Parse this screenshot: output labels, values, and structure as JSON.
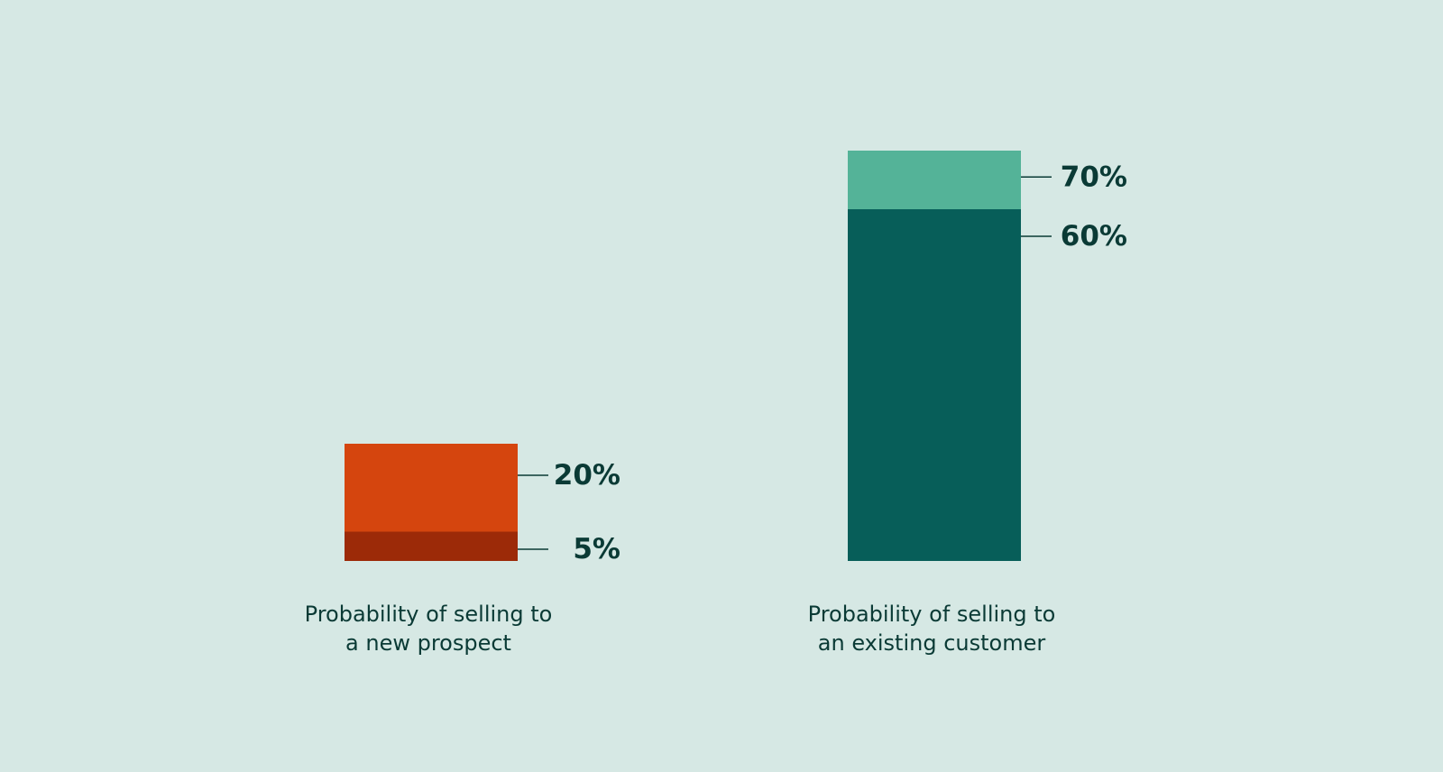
{
  "colors": {
    "background": "#d6e8e4",
    "text": "#0a3a35",
    "prospect_high": "#d5450e",
    "prospect_low": "#9c2a08",
    "customer_high": "#54b398",
    "customer_low": "#075e59"
  },
  "chart_data": {
    "type": "bar",
    "layout": "overlapping-range",
    "title": "",
    "xlabel": "",
    "ylabel": "",
    "ylim": [
      0,
      70
    ],
    "grid": false,
    "legend": "none",
    "bars": [
      {
        "category_lines": [
          "Probability of selling to",
          "a new prospect"
        ],
        "low": 5,
        "high": 20,
        "low_label": "5%",
        "high_label": "20%",
        "low_color": "#9c2a08",
        "high_color": "#d5450e"
      },
      {
        "category_lines": [
          "Probability of selling to",
          "an existing customer"
        ],
        "low": 60,
        "high": 70,
        "low_label": "60%",
        "high_label": "70%",
        "low_color": "#075e59",
        "high_color": "#54b398"
      }
    ]
  }
}
